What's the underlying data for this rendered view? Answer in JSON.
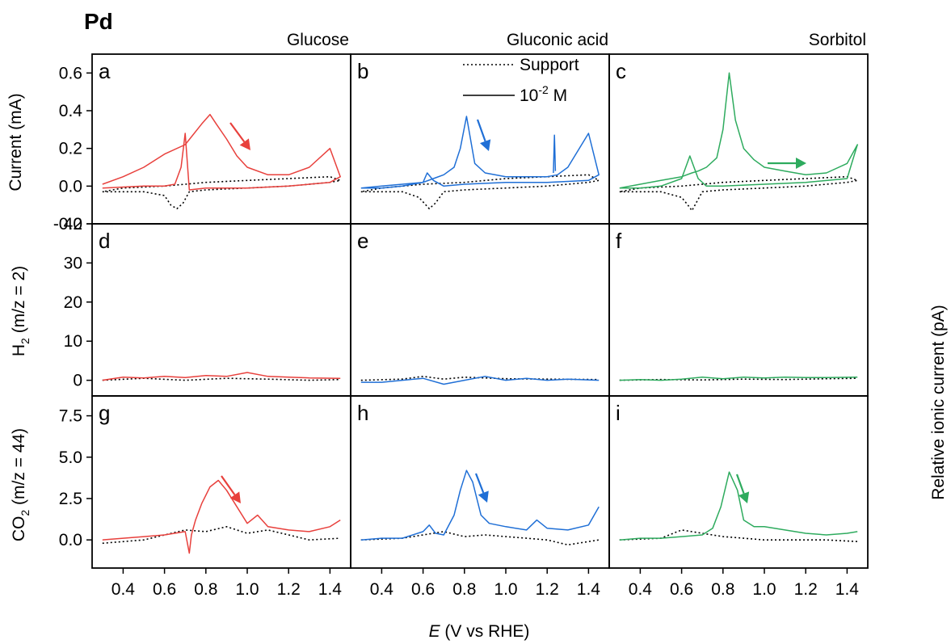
{
  "figure": {
    "title": "Pd",
    "xlabel_italic": "E",
    "xlabel_rest": " (V vs RHE)",
    "columns": [
      "Glucose",
      "Gluconic acid",
      "Sorbitol"
    ],
    "left_ylabels": {
      "top": "Current (mA)",
      "middle": {
        "pre": "H",
        "sub": "2",
        "post": " (m/z = 2)"
      },
      "bottom": {
        "pre": "CO",
        "sub": "2",
        "post": " (m/z = 44)"
      }
    },
    "right_ylabel": "Relative ionic current (pA)",
    "legend": {
      "support": "Support",
      "analyte_pre": "10",
      "analyte_sup": "-2",
      "analyte_post": " M"
    },
    "panel_letters": [
      "a",
      "b",
      "c",
      "d",
      "e",
      "f",
      "g",
      "h",
      "i"
    ]
  },
  "colors": {
    "Glucose": "#e8403c",
    "Gluconic acid": "#1f6fd6",
    "Sorbitol": "#2eab5e",
    "support": "#000000"
  },
  "chart_data": [
    {
      "type": "line",
      "panel": "a",
      "row": "current",
      "column": "Glucose",
      "xlim": [
        0.25,
        1.5
      ],
      "ylim": [
        -0.2,
        0.7
      ],
      "yticks": [
        "-0.2",
        "0.0",
        "0.2",
        "0.4",
        "0.6"
      ],
      "series": [
        {
          "name": "Support",
          "style": "dotted",
          "x": [
            0.3,
            0.5,
            0.6,
            0.63,
            0.66,
            0.69,
            0.72,
            0.8,
            1.0,
            1.2,
            1.4,
            1.45,
            1.4,
            1.2,
            1.0,
            0.8,
            0.6,
            0.4,
            0.3
          ],
          "y": [
            -0.03,
            -0.03,
            -0.05,
            -0.1,
            -0.12,
            -0.09,
            -0.03,
            -0.02,
            -0.01,
            0.0,
            0.02,
            0.03,
            0.05,
            0.04,
            0.03,
            0.02,
            0.0,
            -0.01,
            -0.03
          ]
        },
        {
          "name": "10-2 M",
          "style": "solid",
          "x": [
            0.3,
            0.4,
            0.5,
            0.6,
            0.65,
            0.68,
            0.7,
            0.72,
            0.8,
            1.0,
            1.2,
            1.4,
            1.45,
            1.4,
            1.3,
            1.2,
            1.1,
            1.0,
            0.95,
            0.9,
            0.85,
            0.82,
            0.78,
            0.7,
            0.6,
            0.5,
            0.4,
            0.3
          ],
          "y": [
            -0.01,
            -0.005,
            0.0,
            0.0,
            0.01,
            0.1,
            0.28,
            -0.02,
            -0.01,
            -0.01,
            0.0,
            0.02,
            0.05,
            0.2,
            0.1,
            0.06,
            0.06,
            0.1,
            0.16,
            0.25,
            0.33,
            0.38,
            0.33,
            0.22,
            0.17,
            0.1,
            0.05,
            0.01
          ]
        }
      ]
    },
    {
      "type": "line",
      "panel": "b",
      "row": "current",
      "column": "Gluconic acid",
      "xlim": [
        0.25,
        1.5
      ],
      "ylim": [
        -0.2,
        0.7
      ],
      "series": [
        {
          "name": "Support",
          "style": "dotted",
          "x": [
            0.3,
            0.5,
            0.58,
            0.63,
            0.66,
            0.7,
            0.8,
            1.0,
            1.2,
            1.4,
            1.45,
            1.4,
            1.2,
            1.0,
            0.8,
            0.6,
            0.4,
            0.3
          ],
          "y": [
            -0.03,
            -0.03,
            -0.06,
            -0.12,
            -0.09,
            -0.03,
            -0.02,
            -0.01,
            0.0,
            0.02,
            0.03,
            0.06,
            0.05,
            0.04,
            0.02,
            0.01,
            -0.01,
            -0.03
          ]
        },
        {
          "name": "10-2 M",
          "style": "solid",
          "x": [
            0.3,
            0.4,
            0.5,
            0.6,
            0.62,
            0.65,
            0.7,
            0.8,
            1.0,
            1.2,
            1.4,
            1.45,
            1.4,
            1.3,
            1.25,
            1.2,
            1.1,
            1.0,
            0.9,
            0.85,
            0.81,
            0.78,
            0.75,
            0.7,
            0.65,
            0.6,
            0.5,
            0.4,
            0.3
          ],
          "y": [
            -0.01,
            -0.01,
            0.0,
            0.02,
            0.07,
            0.03,
            0.0,
            0.01,
            0.02,
            0.02,
            0.03,
            0.06,
            0.28,
            0.1,
            0.06,
            0.05,
            0.05,
            0.05,
            0.07,
            0.12,
            0.37,
            0.2,
            0.1,
            0.06,
            0.04,
            0.02,
            0.01,
            0.0,
            -0.01
          ]
        },
        {
          "name": "spike",
          "style": "solid",
          "x": [
            1.23,
            1.235,
            1.24
          ],
          "y": [
            0.07,
            0.27,
            0.08
          ]
        }
      ]
    },
    {
      "type": "line",
      "panel": "c",
      "row": "current",
      "column": "Sorbitol",
      "xlim": [
        0.25,
        1.5
      ],
      "ylim": [
        -0.2,
        0.7
      ],
      "series": [
        {
          "name": "Support",
          "style": "dotted",
          "x": [
            0.3,
            0.5,
            0.6,
            0.63,
            0.65,
            0.67,
            0.7,
            0.8,
            1.0,
            1.2,
            1.4,
            1.45,
            1.4,
            1.2,
            1.0,
            0.8,
            0.6,
            0.4,
            0.3
          ],
          "y": [
            -0.03,
            -0.03,
            -0.06,
            -0.1,
            -0.13,
            -0.09,
            -0.03,
            -0.02,
            -0.01,
            0.0,
            0.02,
            0.03,
            0.05,
            0.04,
            0.03,
            0.02,
            0.0,
            -0.01,
            -0.03
          ]
        },
        {
          "name": "10-2 M",
          "style": "solid",
          "x": [
            0.3,
            0.4,
            0.5,
            0.6,
            0.64,
            0.68,
            0.72,
            0.8,
            1.0,
            1.2,
            1.4,
            1.45,
            1.4,
            1.3,
            1.2,
            1.1,
            1.0,
            0.95,
            0.9,
            0.86,
            0.83,
            0.8,
            0.77,
            0.72,
            0.68,
            0.65,
            0.6,
            0.5,
            0.4,
            0.3
          ],
          "y": [
            -0.01,
            -0.01,
            0.0,
            0.04,
            0.16,
            0.04,
            0.0,
            0.0,
            0.01,
            0.02,
            0.04,
            0.22,
            0.12,
            0.07,
            0.06,
            0.08,
            0.1,
            0.14,
            0.2,
            0.35,
            0.6,
            0.3,
            0.15,
            0.1,
            0.08,
            0.07,
            0.05,
            0.03,
            0.01,
            -0.01
          ]
        }
      ]
    },
    {
      "type": "line",
      "panel": "d",
      "row": "H2",
      "column": "Glucose",
      "xlim": [
        0.25,
        1.5
      ],
      "ylim": [
        -4,
        40
      ],
      "yticks": [
        "0",
        "10",
        "20",
        "30",
        "40"
      ],
      "series": [
        {
          "name": "Support",
          "style": "dotted",
          "x": [
            0.3,
            0.5,
            0.7,
            0.9,
            1.1,
            1.3,
            1.45
          ],
          "y": [
            0.0,
            0.5,
            0.0,
            0.5,
            0.3,
            0.0,
            0.2
          ]
        },
        {
          "name": "10-2 M",
          "style": "solid",
          "x": [
            0.3,
            0.4,
            0.5,
            0.6,
            0.7,
            0.8,
            0.9,
            1.0,
            1.1,
            1.2,
            1.3,
            1.45
          ],
          "y": [
            0.0,
            0.8,
            0.6,
            1.0,
            0.7,
            1.2,
            1.0,
            2.0,
            1.0,
            0.8,
            0.6,
            0.5
          ]
        }
      ]
    },
    {
      "type": "line",
      "panel": "e",
      "row": "H2",
      "column": "Gluconic acid",
      "xlim": [
        0.25,
        1.5
      ],
      "ylim": [
        -4,
        40
      ],
      "series": [
        {
          "name": "Support",
          "style": "dotted",
          "x": [
            0.3,
            0.5,
            0.6,
            0.7,
            0.8,
            1.0,
            1.2,
            1.45
          ],
          "y": [
            0.0,
            0.3,
            1.0,
            0.3,
            0.8,
            0.4,
            0.3,
            0.2
          ]
        },
        {
          "name": "10-2 M",
          "style": "solid",
          "x": [
            0.3,
            0.4,
            0.5,
            0.6,
            0.7,
            0.8,
            0.9,
            1.0,
            1.1,
            1.2,
            1.3,
            1.45
          ],
          "y": [
            -0.5,
            -0.5,
            0.0,
            0.5,
            -1.0,
            0.0,
            1.0,
            0.0,
            0.5,
            0.0,
            0.3,
            0.0
          ]
        }
      ]
    },
    {
      "type": "line",
      "panel": "f",
      "row": "H2",
      "column": "Sorbitol",
      "xlim": [
        0.25,
        1.5
      ],
      "ylim": [
        -4,
        40
      ],
      "series": [
        {
          "name": "Support",
          "style": "dotted",
          "x": [
            0.3,
            0.5,
            0.7,
            0.9,
            1.1,
            1.3,
            1.45
          ],
          "y": [
            0.0,
            0.2,
            0.1,
            0.3,
            0.2,
            0.4,
            0.5
          ]
        },
        {
          "name": "10-2 M",
          "style": "solid",
          "x": [
            0.3,
            0.4,
            0.5,
            0.6,
            0.7,
            0.8,
            0.9,
            1.0,
            1.1,
            1.2,
            1.3,
            1.45
          ],
          "y": [
            0.0,
            0.2,
            0.0,
            0.3,
            0.8,
            0.4,
            0.8,
            0.6,
            0.8,
            0.7,
            0.7,
            0.8
          ]
        }
      ]
    },
    {
      "type": "line",
      "panel": "g",
      "row": "CO2",
      "column": "Glucose",
      "xlim": [
        0.25,
        1.5
      ],
      "ylim": [
        -1.7,
        8.7
      ],
      "yticks": [
        "0.0",
        "2.5",
        "5.0",
        "7.5"
      ],
      "series": [
        {
          "name": "Support",
          "style": "dotted",
          "x": [
            0.3,
            0.5,
            0.6,
            0.7,
            0.8,
            0.9,
            1.0,
            1.1,
            1.2,
            1.3,
            1.45
          ],
          "y": [
            -0.2,
            0.0,
            0.3,
            0.6,
            0.5,
            0.8,
            0.4,
            0.6,
            0.3,
            0.0,
            0.1
          ]
        },
        {
          "name": "10-2 M",
          "style": "solid",
          "x": [
            0.3,
            0.4,
            0.5,
            0.6,
            0.7,
            0.72,
            0.73,
            0.75,
            0.78,
            0.82,
            0.86,
            0.9,
            0.95,
            1.0,
            1.05,
            1.1,
            1.2,
            1.3,
            1.4,
            1.45
          ],
          "y": [
            0.0,
            0.1,
            0.2,
            0.3,
            0.5,
            -0.8,
            0.3,
            1.2,
            2.2,
            3.2,
            3.6,
            3.0,
            2.0,
            1.0,
            1.5,
            0.8,
            0.6,
            0.5,
            0.8,
            1.2
          ]
        }
      ]
    },
    {
      "type": "line",
      "panel": "h",
      "row": "CO2",
      "column": "Gluconic acid",
      "xlim": [
        0.25,
        1.5
      ],
      "ylim": [
        -1.7,
        8.7
      ],
      "series": [
        {
          "name": "Support",
          "style": "dotted",
          "x": [
            0.3,
            0.5,
            0.6,
            0.7,
            0.8,
            0.9,
            1.0,
            1.1,
            1.2,
            1.3,
            1.45
          ],
          "y": [
            0.0,
            0.1,
            0.3,
            0.5,
            0.2,
            0.3,
            0.2,
            0.1,
            0.0,
            -0.3,
            0.0
          ]
        },
        {
          "name": "10-2 M",
          "style": "solid",
          "x": [
            0.3,
            0.4,
            0.5,
            0.6,
            0.63,
            0.66,
            0.7,
            0.75,
            0.78,
            0.81,
            0.84,
            0.88,
            0.92,
            1.0,
            1.1,
            1.15,
            1.2,
            1.3,
            1.4,
            1.45
          ],
          "y": [
            0.0,
            0.1,
            0.1,
            0.5,
            0.9,
            0.4,
            0.3,
            1.5,
            3.0,
            4.2,
            3.5,
            1.5,
            1.0,
            0.8,
            0.6,
            1.2,
            0.7,
            0.6,
            0.9,
            2.0
          ]
        }
      ]
    },
    {
      "type": "line",
      "panel": "i",
      "row": "CO2",
      "column": "Sorbitol",
      "xlim": [
        0.25,
        1.5
      ],
      "ylim": [
        -1.7,
        8.7
      ],
      "series": [
        {
          "name": "Support",
          "style": "dotted",
          "x": [
            0.3,
            0.5,
            0.6,
            0.7,
            0.8,
            0.9,
            1.0,
            1.1,
            1.2,
            1.3,
            1.45
          ],
          "y": [
            0.0,
            0.1,
            0.6,
            0.4,
            0.2,
            0.1,
            0.0,
            0.0,
            0.0,
            0.0,
            -0.1
          ]
        },
        {
          "name": "10-2 M",
          "style": "solid",
          "x": [
            0.3,
            0.4,
            0.5,
            0.6,
            0.7,
            0.75,
            0.79,
            0.83,
            0.87,
            0.9,
            0.95,
            1.0,
            1.1,
            1.2,
            1.3,
            1.4,
            1.45
          ],
          "y": [
            0.0,
            0.1,
            0.1,
            0.2,
            0.3,
            0.7,
            2.0,
            4.1,
            3.0,
            1.2,
            0.8,
            0.8,
            0.6,
            0.4,
            0.3,
            0.4,
            0.5
          ]
        }
      ]
    }
  ]
}
